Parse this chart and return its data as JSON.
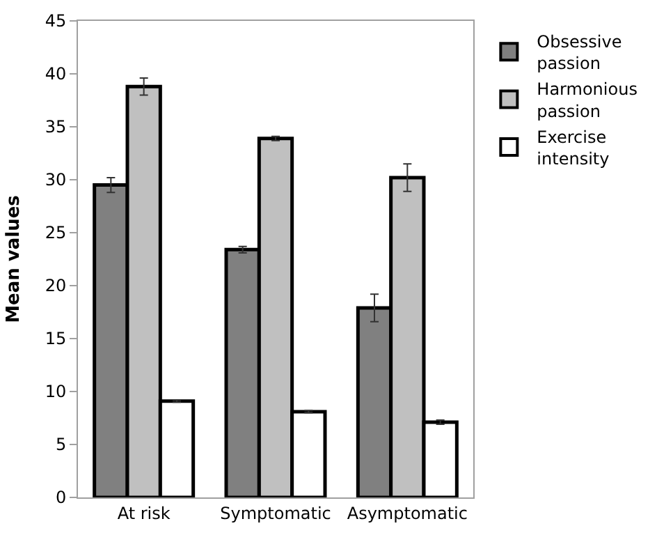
{
  "chart_data": {
    "type": "bar",
    "ylabel": "Mean values",
    "categories": [
      "At risk",
      "Symptomatic",
      "Asymptomatic"
    ],
    "series": [
      {
        "name": "Obsessive passion",
        "color": "#808080",
        "values": [
          29.5,
          23.4,
          17.9
        ],
        "errors": [
          0.7,
          0.3,
          1.3
        ]
      },
      {
        "name": "Harmonious passion",
        "color": "#c0c0c0",
        "values": [
          38.8,
          33.9,
          30.2
        ],
        "errors": [
          0.8,
          0.2,
          1.3
        ]
      },
      {
        "name": "Exercise intensity",
        "color": "#ffffff",
        "values": [
          9.1,
          8.1,
          7.1
        ],
        "errors": [
          0.1,
          0.1,
          0.2
        ]
      }
    ],
    "ylim": [
      0,
      45
    ],
    "yticks": [
      0,
      5,
      10,
      15,
      20,
      25,
      30,
      35,
      40,
      45
    ],
    "grid": false,
    "legend": "top right"
  }
}
